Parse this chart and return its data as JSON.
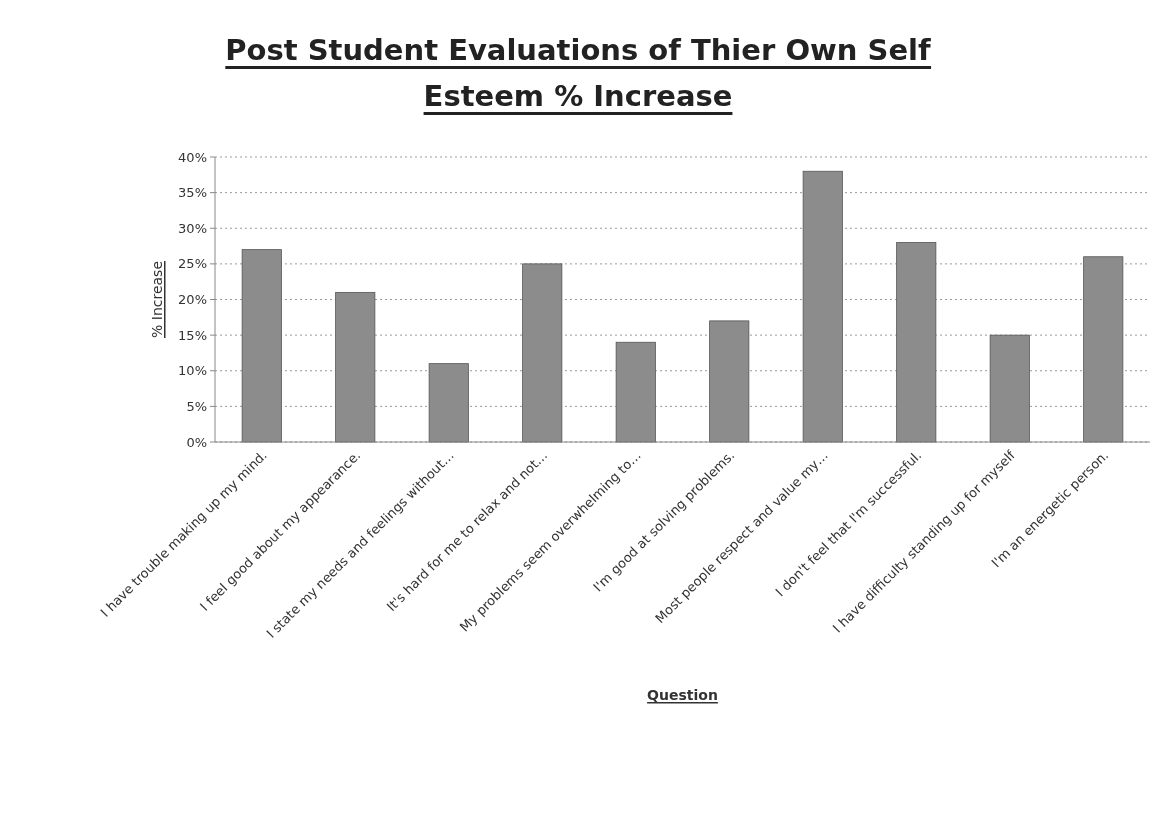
{
  "chart_data": {
    "type": "bar",
    "title": "Post Student Evaluations of Thier Own Self Esteem % Increase",
    "xlabel": "Question",
    "ylabel": "% Increase",
    "categories": [
      "I have trouble making up my mind.",
      "I feel good about my appearance.",
      "I state my needs and feelings without…",
      "It's hard for me to relax and not…",
      "My problems seem overwhelming to…",
      "I'm good at solving problems.",
      "Most people respect and value my…",
      "I don't feel that I'm successful.",
      "I have difficulty standing up for myself",
      "I'm an energetic person."
    ],
    "values": [
      27,
      21,
      11,
      25,
      14,
      17,
      38,
      28,
      15,
      26
    ],
    "color": "#8c8c8c",
    "ylim": [
      0,
      40
    ],
    "yticks": [
      {
        "value": 0,
        "label": "0%"
      },
      {
        "value": 5,
        "label": "5%"
      },
      {
        "value": 10,
        "label": "10%"
      },
      {
        "value": 15,
        "label": "15%"
      },
      {
        "value": 20,
        "label": "20%"
      },
      {
        "value": 25,
        "label": "25%"
      },
      {
        "value": 30,
        "label": "30%"
      },
      {
        "value": 35,
        "label": "35%"
      },
      {
        "value": 40,
        "label": "40%"
      }
    ],
    "grid": "y"
  }
}
